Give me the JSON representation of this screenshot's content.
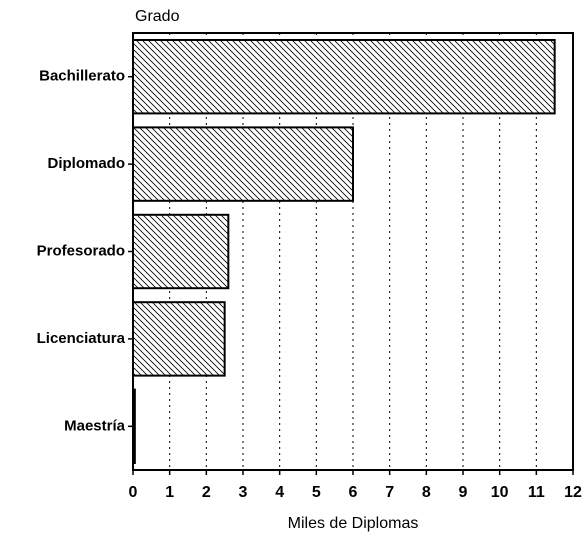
{
  "chart_data": {
    "type": "barh",
    "y_axis_title": "Grado",
    "x_axis_title": "Miles de Diplomas",
    "categories": [
      "Bachillerato",
      "Diplomado",
      "Profesorado",
      "Licenciatura",
      "Maestría"
    ],
    "values": [
      11.5,
      6.0,
      2.6,
      2.5,
      0.05
    ],
    "xlim": [
      0,
      12
    ],
    "xticks": [
      0,
      1,
      2,
      3,
      4,
      5,
      6,
      7,
      8,
      9,
      10,
      11,
      12
    ],
    "grid": true,
    "color": "#000000"
  }
}
